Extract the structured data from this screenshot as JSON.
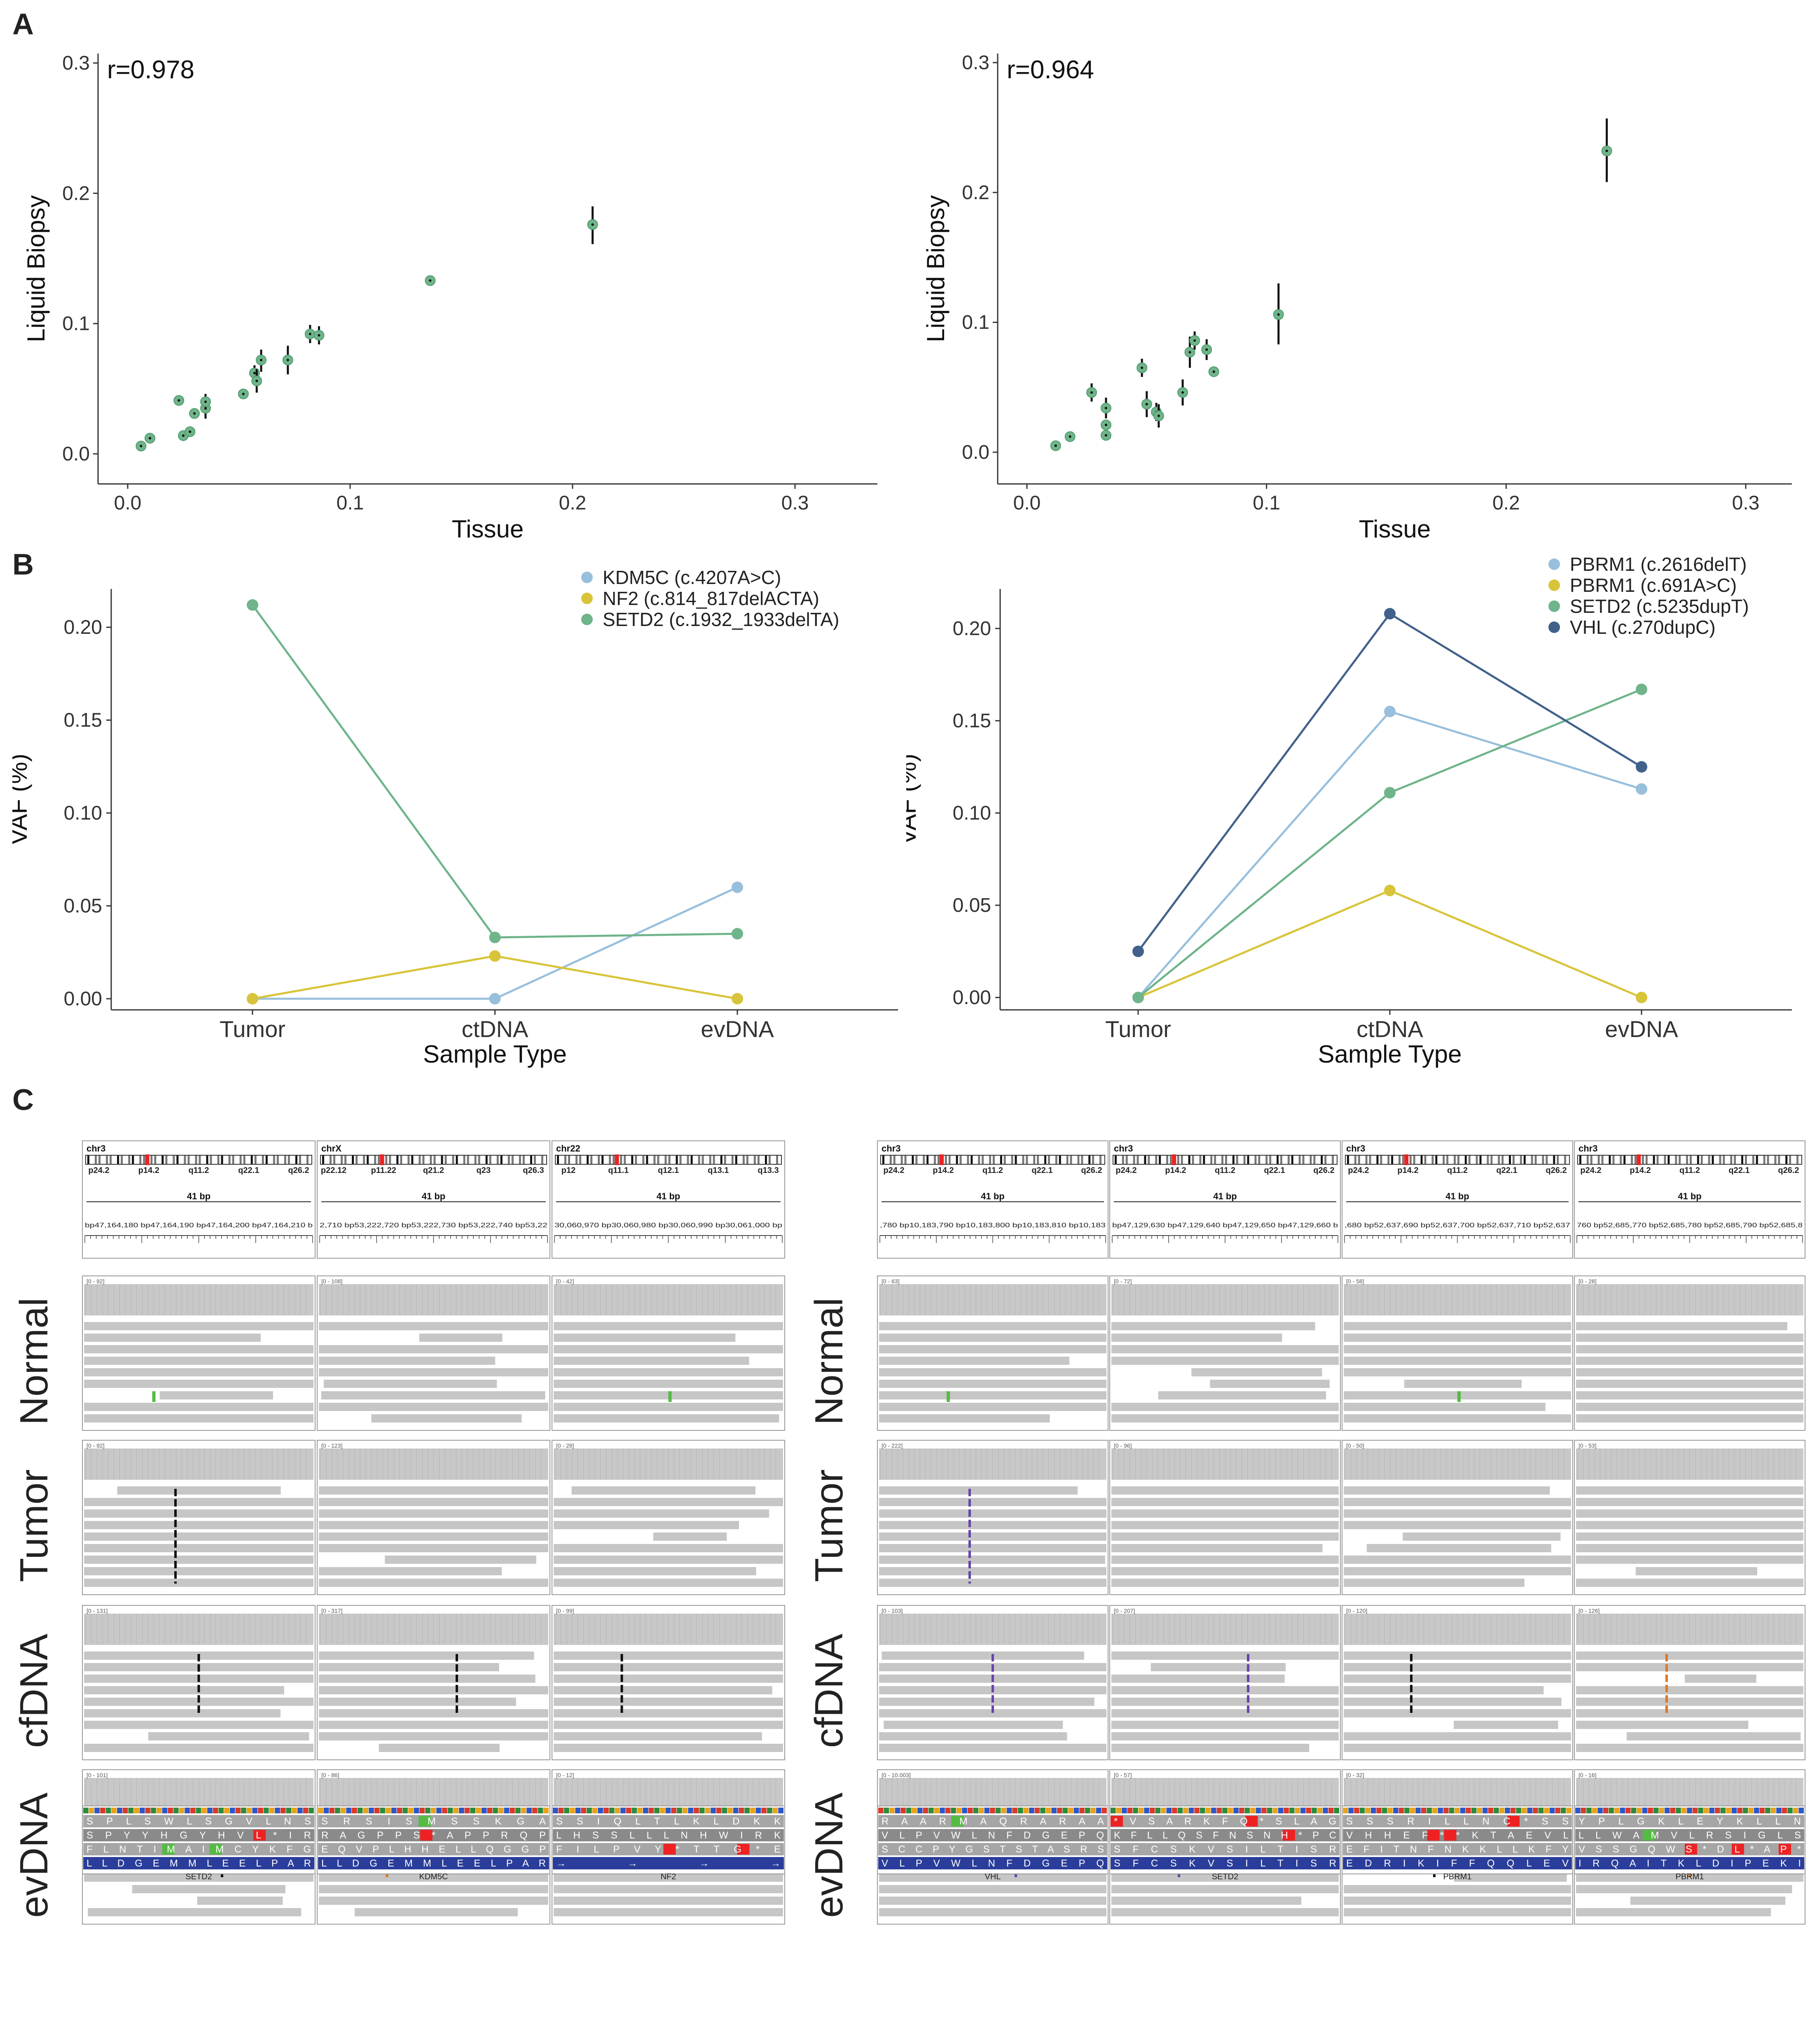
{
  "panels": {
    "a": "A",
    "b": "B",
    "c": "C"
  },
  "chart_data": [
    {
      "id": "scatterLeft",
      "type": "scatter",
      "title": "",
      "xlabel": "Tissue",
      "ylabel": "Liquid Biopsy",
      "annotation": "r=0.978",
      "xlim": [
        0,
        0.3
      ],
      "ylim": [
        0,
        0.3
      ],
      "xticks": [
        0,
        0.1,
        0.2,
        0.3
      ],
      "yticks": [
        0,
        0.1,
        0.2,
        0.3
      ],
      "xtick_labels": [
        "0.0",
        "0.1",
        "0.2",
        "0.3"
      ],
      "ytick_labels": [
        "0.0",
        "0.1",
        "0.2",
        "0.3"
      ],
      "points": [
        {
          "x": 0.006,
          "y": 0.006,
          "lo": 0.004,
          "hi": 0.008
        },
        {
          "x": 0.01,
          "y": 0.012,
          "lo": 0.009,
          "hi": 0.015
        },
        {
          "x": 0.023,
          "y": 0.041,
          "lo": 0.038,
          "hi": 0.044
        },
        {
          "x": 0.025,
          "y": 0.014,
          "lo": 0.012,
          "hi": 0.016
        },
        {
          "x": 0.028,
          "y": 0.017,
          "lo": 0.015,
          "hi": 0.019
        },
        {
          "x": 0.03,
          "y": 0.031,
          "lo": 0.028,
          "hi": 0.034
        },
        {
          "x": 0.035,
          "y": 0.035,
          "lo": 0.027,
          "hi": 0.043
        },
        {
          "x": 0.035,
          "y": 0.04,
          "lo": 0.034,
          "hi": 0.046
        },
        {
          "x": 0.052,
          "y": 0.046,
          "lo": 0.043,
          "hi": 0.049
        },
        {
          "x": 0.057,
          "y": 0.062,
          "lo": 0.056,
          "hi": 0.068
        },
        {
          "x": 0.058,
          "y": 0.056,
          "lo": 0.047,
          "hi": 0.065
        },
        {
          "x": 0.06,
          "y": 0.072,
          "lo": 0.063,
          "hi": 0.08
        },
        {
          "x": 0.072,
          "y": 0.072,
          "lo": 0.061,
          "hi": 0.083
        },
        {
          "x": 0.082,
          "y": 0.092,
          "lo": 0.085,
          "hi": 0.099
        },
        {
          "x": 0.086,
          "y": 0.091,
          "lo": 0.084,
          "hi": 0.098
        },
        {
          "x": 0.136,
          "y": 0.133,
          "lo": 0.13,
          "hi": 0.136
        },
        {
          "x": 0.209,
          "y": 0.176,
          "lo": 0.161,
          "hi": 0.19
        }
      ]
    },
    {
      "id": "scatterRight",
      "type": "scatter",
      "title": "",
      "xlabel": "Tissue",
      "ylabel": "Liquid Biopsy",
      "annotation": "r=0.964",
      "xlim": [
        0,
        0.3
      ],
      "ylim": [
        0,
        0.3
      ],
      "xticks": [
        0,
        0.1,
        0.2,
        0.3
      ],
      "yticks": [
        0,
        0.1,
        0.2,
        0.3
      ],
      "xtick_labels": [
        "0.0",
        "0.1",
        "0.2",
        "0.3"
      ],
      "ytick_labels": [
        "0.0",
        "0.1",
        "0.2",
        "0.3"
      ],
      "points": [
        {
          "x": 0.012,
          "y": 0.005,
          "lo": 0.003,
          "hi": 0.007
        },
        {
          "x": 0.018,
          "y": 0.012,
          "lo": 0.009,
          "hi": 0.015
        },
        {
          "x": 0.027,
          "y": 0.046,
          "lo": 0.039,
          "hi": 0.053
        },
        {
          "x": 0.033,
          "y": 0.013,
          "lo": 0.01,
          "hi": 0.016
        },
        {
          "x": 0.033,
          "y": 0.021,
          "lo": 0.017,
          "hi": 0.025
        },
        {
          "x": 0.033,
          "y": 0.034,
          "lo": 0.026,
          "hi": 0.042
        },
        {
          "x": 0.048,
          "y": 0.065,
          "lo": 0.058,
          "hi": 0.072
        },
        {
          "x": 0.05,
          "y": 0.037,
          "lo": 0.027,
          "hi": 0.047
        },
        {
          "x": 0.054,
          "y": 0.031,
          "lo": 0.024,
          "hi": 0.038
        },
        {
          "x": 0.055,
          "y": 0.028,
          "lo": 0.019,
          "hi": 0.037
        },
        {
          "x": 0.065,
          "y": 0.046,
          "lo": 0.036,
          "hi": 0.056
        },
        {
          "x": 0.068,
          "y": 0.077,
          "lo": 0.065,
          "hi": 0.089
        },
        {
          "x": 0.07,
          "y": 0.086,
          "lo": 0.079,
          "hi": 0.093
        },
        {
          "x": 0.075,
          "y": 0.079,
          "lo": 0.071,
          "hi": 0.087
        },
        {
          "x": 0.078,
          "y": 0.062,
          "lo": 0.059,
          "hi": 0.065
        },
        {
          "x": 0.105,
          "y": 0.106,
          "lo": 0.083,
          "hi": 0.13
        },
        {
          "x": 0.242,
          "y": 0.232,
          "lo": 0.208,
          "hi": 0.257
        }
      ]
    },
    {
      "id": "lineLeft",
      "type": "line",
      "xlabel": "Sample Type",
      "ylabel": "VAF (%)",
      "categories": [
        "Tumor",
        "ctDNA",
        "evDNA"
      ],
      "ylim": [
        -0.01,
        0.22
      ],
      "yticks": [
        0,
        0.05,
        0.1,
        0.15,
        0.2
      ],
      "ytick_labels": [
        "0.00",
        "0.05",
        "0.10",
        "0.15",
        "0.20"
      ],
      "series": [
        {
          "name": "KDM5C (c.4207A>C)",
          "color": "#98bfdc",
          "values": [
            0.0,
            0.0,
            0.06
          ]
        },
        {
          "name": "NF2 (c.814_817delACTA)",
          "color": "#d8c43a",
          "values": [
            0.0,
            0.023,
            0.0
          ]
        },
        {
          "name": "SETD2 (c.1932_1933delTA)",
          "color": "#6fb48a",
          "values": [
            0.212,
            0.033,
            0.035
          ]
        }
      ]
    },
    {
      "id": "lineRight",
      "type": "line",
      "xlabel": "Sample Type",
      "ylabel": "VAF (%)",
      "categories": [
        "Tumor",
        "ctDNA",
        "evDNA"
      ],
      "ylim": [
        -0.01,
        0.22
      ],
      "yticks": [
        0,
        0.05,
        0.1,
        0.15,
        0.2
      ],
      "ytick_labels": [
        "0.00",
        "0.05",
        "0.10",
        "0.15",
        "0.20"
      ],
      "series": [
        {
          "name": "PBRM1 (c.2616delT)",
          "color": "#98bfdc",
          "values": [
            0.0,
            0.155,
            0.113
          ]
        },
        {
          "name": "PBRM1 (c.691A>C)",
          "color": "#d8c43a",
          "values": [
            0.0,
            0.058,
            0.0
          ]
        },
        {
          "name": "SETD2 (c.5235dupT)",
          "color": "#6fb48a",
          "values": [
            0.0,
            0.111,
            0.167
          ]
        },
        {
          "name": "VHL (c.270dupC)",
          "color": "#41618a",
          "values": [
            0.025,
            0.208,
            0.125
          ]
        }
      ]
    }
  ],
  "igv": {
    "row_labels": [
      "Normal",
      "Tumor",
      "cfDNA",
      "evDNA"
    ],
    "span_label": "41 bp",
    "left": [
      {
        "chr": "chr3",
        "bands": [
          "p24.2",
          "p14.2",
          "q11.2",
          "q22.1",
          "q26.2"
        ],
        "coords": "bp47,164,180 bp47,164,190 bp47,164,200 bp47,164,210 b",
        "gene": "SETD2",
        "ranges": [
          "[0 - 92]",
          "[0 - 92]",
          "[0 - 131]",
          "[0 - 101]"
        ],
        "aa": [
          "S P L S W L S G V L N S",
          "S P Y Y H G Y H V L * I R",
          "F L N T I M A I M C Y K F G",
          "L L D G E M M L E E L P A R"
        ]
      },
      {
        "chr": "chrX",
        "bands": [
          "p22.12",
          "p11.22",
          "q21.2",
          "q23",
          "q26.3"
        ],
        "coords": "2,710 bp53,222,720 bp53,222,730 bp53,222,740 bp53,22",
        "gene": "KDM5C",
        "ranges": [
          "[0 - 108]",
          "[0 - 123]",
          "[0 - 317]",
          "[0 - 86]"
        ],
        "aa": [
          "S R S I S M S S K G A",
          "R A G P P S * A P P R Q P",
          "E Q V P L H H E L L Q G G P",
          "L L D G E M M L E E L P A R"
        ]
      },
      {
        "chr": "chr22",
        "bands": [
          "p12",
          "q11.1",
          "q12.1",
          "q13.1",
          "q13.3"
        ],
        "coords": "30,060,970 bp30,060,980 bp30,060,990 bp30,061,000 bp",
        "gene": "NF2",
        "ranges": [
          "[0 - 42]",
          "[0 - 28]",
          "[0 - 99]",
          "[0 - 12]"
        ],
        "aa": [
          "S S I Q L T L K L D K K",
          "L H S S L L L N H W I R K",
          "F I L P V Y * T T G * E",
          "→ → → →"
        ]
      }
    ],
    "right": [
      {
        "chr": "chr3",
        "bands": [
          "p24.2",
          "p14.2",
          "q11.2",
          "q22.1",
          "q26.2"
        ],
        "coords": ",780 bp10,183,790 bp10,183,800 bp10,183,810 bp10,183",
        "gene": "VHL",
        "ranges": [
          "[0 - 63]",
          "[0 - 222]",
          "[0 - 103]",
          "[0 - 10.003]"
        ],
        "aa": [
          "R A A R M A Q R A R A A",
          "V L P V W L N F D G E P Q",
          "S C C P Y G S T S T A S R S",
          "V L P V W L N F D G E P Q"
        ]
      },
      {
        "chr": "chr3",
        "bands": [
          "p24.2",
          "p14.2",
          "q11.2",
          "q22.1",
          "q26.2"
        ],
        "coords": "bp47,129,630 bp47,129,640 bp47,129,650 bp47,129,660 b",
        "gene": "SETD2",
        "ranges": [
          "[0 - 72]",
          "[0 - 96]",
          "[0 - 207]",
          "[0 - 57]"
        ],
        "aa": [
          "* V S A R K F Q * S L A G",
          "K F L L Q S F N S N H * P C",
          "S F C S K V S I L T I S R",
          "S F C S K V S I L T I S R"
        ]
      },
      {
        "chr": "chr3",
        "bands": [
          "p24.2",
          "p14.2",
          "q11.2",
          "q22.1",
          "q26.2"
        ],
        "coords": ",680 bp52,637,690 bp52,637,700 bp52,637,710 bp52,637",
        "gene": "PBRM1",
        "ranges": [
          "[0 - 58]",
          "[0 - 50]",
          "[0 - 120]",
          "[0 - 32]"
        ],
        "aa": [
          "S S S R I L L N C * S S",
          "V H H E F * * K T A E V L",
          "E F I T N F N K K L L K F Y",
          "E D R I K I F F Q Q L E V"
        ]
      },
      {
        "chr": "chr3",
        "bands": [
          "p24.2",
          "p14.2",
          "q11.2",
          "q22.1",
          "q26.2"
        ],
        "coords": "760 bp52,685,770 bp52,685,780 bp52,685,790 bp52,685,8",
        "gene": "PBRM1",
        "ranges": [
          "[0 - 28]",
          "[0 - 53]",
          "[0 - 126]",
          "[0 - 16]"
        ],
        "aa": [
          "Y P L G K L E Y K L L N",
          "L L W A M V L R S I G L S",
          "V S S G Q W S * D L * A P *",
          "I R Q A I T K L D I P E K I"
        ]
      }
    ]
  }
}
